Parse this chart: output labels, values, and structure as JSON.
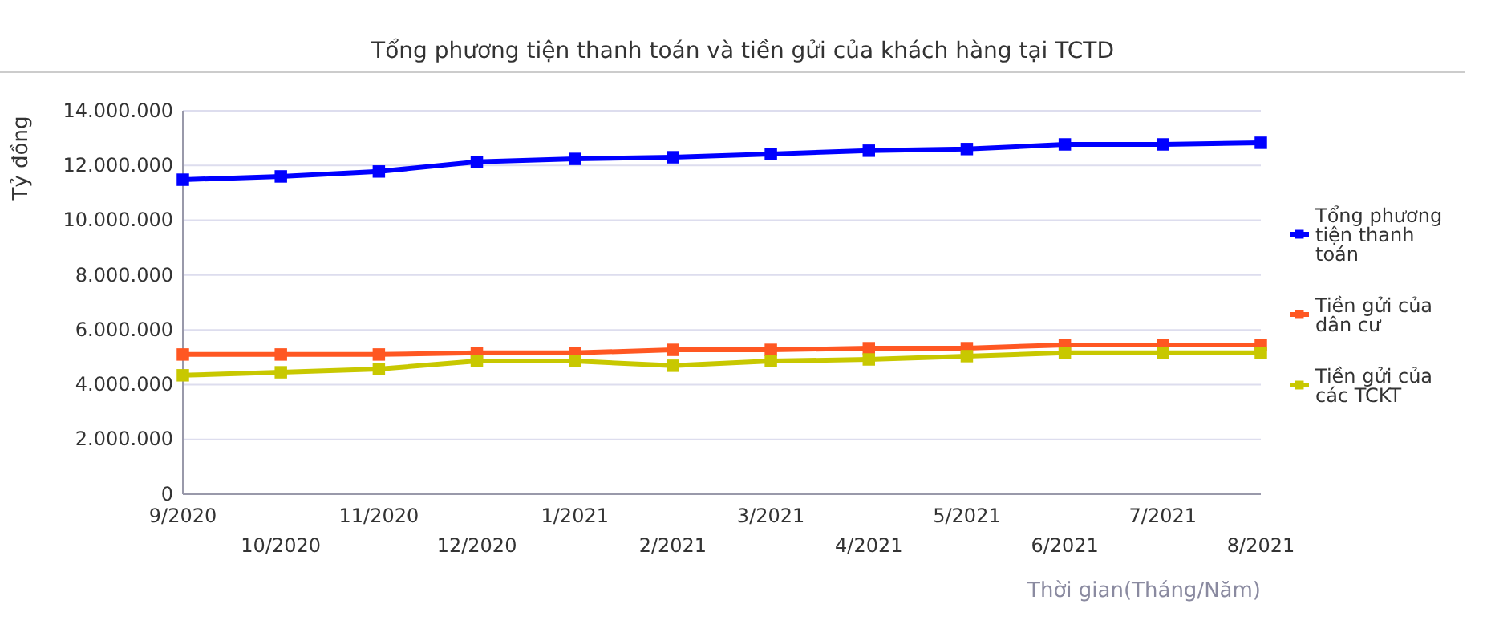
{
  "chart_data": {
    "type": "line",
    "title": "Tổng phương tiện thanh toán và tiền gửi của khách hàng tại TCTD",
    "xlabel": "Thời gian(Tháng/Năm)",
    "ylabel": "Tỷ đồng",
    "categories": [
      "9/2020",
      "10/2020",
      "11/2020",
      "12/2020",
      "1/2021",
      "2/2021",
      "3/2021",
      "4/2021",
      "5/2021",
      "6/2021",
      "7/2021",
      "8/2021"
    ],
    "series": [
      {
        "name": "Tổng phương tiện thanh toán",
        "color": "#0000ff",
        "values": [
          11480000,
          11600000,
          11780000,
          12130000,
          12240000,
          12300000,
          12420000,
          12540000,
          12600000,
          12770000,
          12770000,
          12830000
        ]
      },
      {
        "name": "Tiền gửi của dân cư",
        "color": "#ff5722",
        "values": [
          5100000,
          5100000,
          5100000,
          5160000,
          5160000,
          5270000,
          5270000,
          5330000,
          5330000,
          5450000,
          5450000,
          5450000
        ]
      },
      {
        "name": "Tiền gửi của các TCKT",
        "color": "#c8c800",
        "values": [
          4340000,
          4450000,
          4570000,
          4860000,
          4860000,
          4690000,
          4860000,
          4920000,
          5040000,
          5160000,
          5160000,
          5160000
        ]
      }
    ],
    "ylim": [
      0,
      14000000
    ],
    "yticks": [
      0,
      {
        "value": 2000000,
        "label": "2.000.000"
      },
      {
        "value": 4000000,
        "label": "4.000.000"
      },
      {
        "value": 6000000,
        "label": "6.000.000"
      },
      {
        "value": 8000000,
        "label": "8.000.000"
      },
      {
        "value": 10000000,
        "label": "10.000.000"
      },
      {
        "value": 12000000,
        "label": "12.000.000"
      },
      {
        "value": 14000000,
        "label": "14.000.000"
      }
    ],
    "grid": "y",
    "legend": "right",
    "marker": "square",
    "line_style": "solid"
  }
}
